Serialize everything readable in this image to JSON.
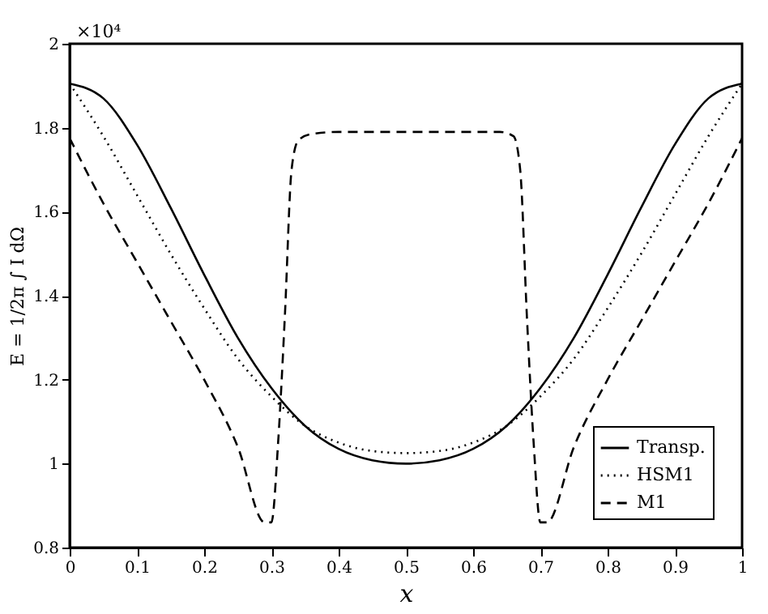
{
  "chart_data": {
    "type": "line",
    "xlabel": "x",
    "ylabel": "E = 1/2π ∫ I dΩ",
    "annotations": [
      "×10⁴"
    ],
    "xlim": [
      0,
      1
    ],
    "xticks": [
      0,
      0.1,
      0.2,
      0.3,
      0.4,
      0.5,
      0.6,
      0.7,
      0.8,
      0.9,
      1
    ],
    "ylim": [
      0.8,
      2
    ],
    "yticks": [
      0.8,
      1,
      1.2,
      1.4,
      1.6,
      1.8,
      2
    ],
    "grid": false,
    "legend": "bottom right",
    "marker": "none",
    "series": [
      {
        "name": "Transp.",
        "color": "#000000",
        "line_style": "solid",
        "x": [
          0,
          0.05,
          0.1,
          0.15,
          0.2,
          0.25,
          0.3,
          0.35,
          0.4,
          0.45,
          0.5,
          0.55,
          0.6,
          0.65,
          0.7,
          0.75,
          0.8,
          0.85,
          0.9,
          0.95,
          1
        ],
        "values": [
          1.905,
          1.87,
          1.76,
          1.61,
          1.45,
          1.3,
          1.18,
          1.09,
          1.035,
          1.008,
          1.0,
          1.008,
          1.035,
          1.09,
          1.18,
          1.3,
          1.45,
          1.61,
          1.76,
          1.87,
          1.905
        ]
      },
      {
        "name": "HSM1",
        "color": "#000000",
        "line_style": "dotted",
        "x": [
          0,
          0.05,
          0.1,
          0.15,
          0.2,
          0.25,
          0.3,
          0.35,
          0.4,
          0.45,
          0.5,
          0.55,
          0.6,
          0.65,
          0.7,
          0.75,
          0.8,
          0.85,
          0.9,
          0.95,
          1
        ],
        "values": [
          1.905,
          1.78,
          1.64,
          1.5,
          1.37,
          1.25,
          1.16,
          1.09,
          1.05,
          1.03,
          1.025,
          1.03,
          1.05,
          1.09,
          1.16,
          1.25,
          1.37,
          1.5,
          1.64,
          1.78,
          1.905
        ]
      },
      {
        "name": "M1",
        "color": "#000000",
        "line_style": "dashed",
        "x": [
          0,
          0.05,
          0.1,
          0.15,
          0.2,
          0.25,
          0.29,
          0.3,
          0.31,
          0.32,
          0.33,
          0.34,
          0.36,
          0.4,
          0.5,
          0.6,
          0.64,
          0.66,
          0.67,
          0.68,
          0.69,
          0.7,
          0.71,
          0.75,
          0.8,
          0.85,
          0.9,
          0.95,
          1
        ],
        "values": [
          1.775,
          1.62,
          1.48,
          1.34,
          1.2,
          1.04,
          0.86,
          0.86,
          1.05,
          1.35,
          1.7,
          1.77,
          1.785,
          1.79,
          1.79,
          1.79,
          1.79,
          1.78,
          1.7,
          1.35,
          1.05,
          0.86,
          0.86,
          1.04,
          1.2,
          1.34,
          1.48,
          1.62,
          1.775
        ]
      }
    ]
  }
}
